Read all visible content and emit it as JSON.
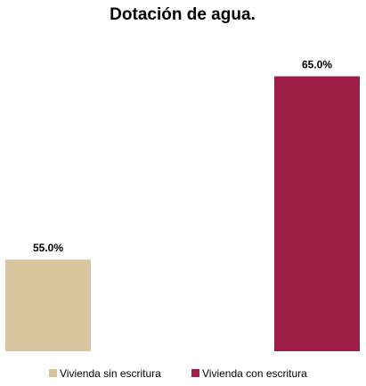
{
  "chart_data": {
    "type": "bar",
    "title": "Dotación de agua.",
    "categories": [
      "Vivienda sin escritura",
      "Vivienda con escritura"
    ],
    "values": [
      55.0,
      65.0
    ],
    "value_labels": [
      "55.0%",
      "65.0%"
    ],
    "colors": [
      "#d8c59e",
      "#9f1f48"
    ],
    "xlabel": "",
    "ylabel": "",
    "ylim": [
      50,
      66
    ],
    "grid": false,
    "legend_position": "bottom"
  }
}
